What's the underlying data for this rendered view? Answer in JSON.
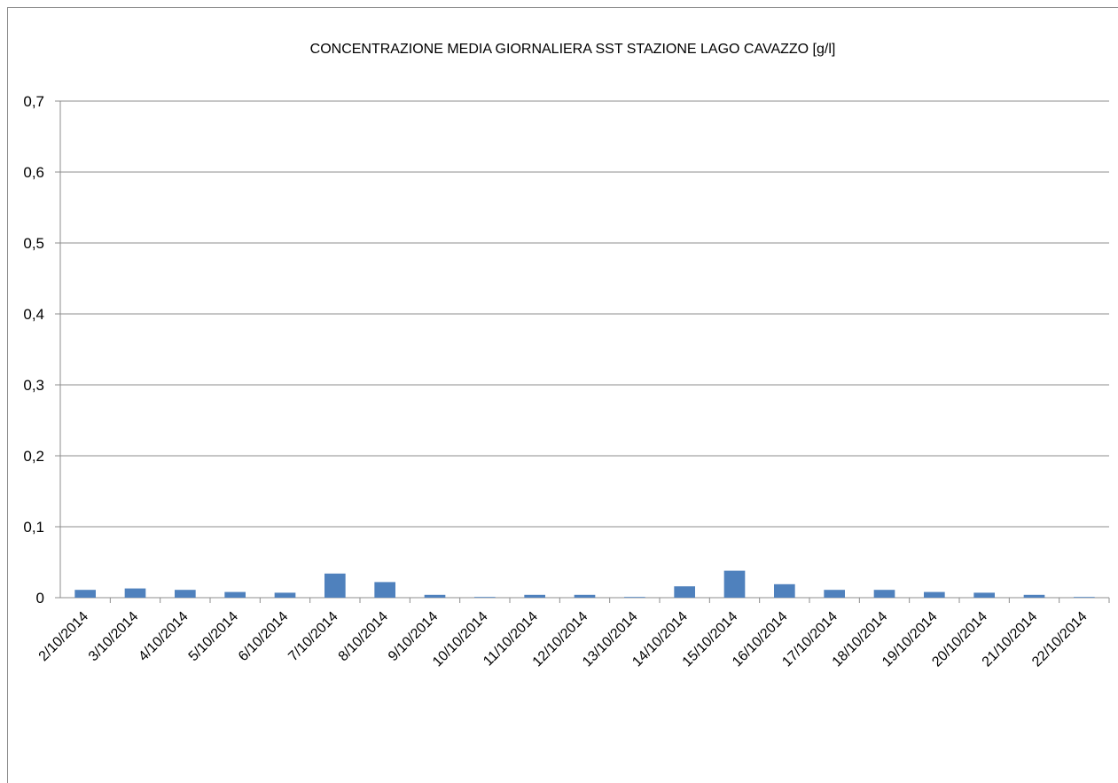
{
  "chart_data": {
    "type": "bar",
    "title": "CONCENTRAZIONE MEDIA GIORNALIERA SST STAZIONE LAGO CAVAZZO [g/l]",
    "xlabel": "",
    "ylabel": "",
    "ylim": [
      0,
      0.7
    ],
    "yticks": [
      "0",
      "0,1",
      "0,2",
      "0,3",
      "0,4",
      "0,5",
      "0,6",
      "0,7"
    ],
    "grid": true,
    "legend": "none",
    "bar_color": "#4f81bd",
    "categories": [
      "2/10/2014",
      "3/10/2014",
      "4/10/2014",
      "5/10/2014",
      "6/10/2014",
      "7/10/2014",
      "8/10/2014",
      "9/10/2014",
      "10/10/2014",
      "11/10/2014",
      "12/10/2014",
      "13/10/2014",
      "14/10/2014",
      "15/10/2014",
      "16/10/2014",
      "17/10/2014",
      "18/10/2014",
      "19/10/2014",
      "20/10/2014",
      "21/10/2014",
      "22/10/2014"
    ],
    "values": [
      0.011,
      0.013,
      0.011,
      0.008,
      0.007,
      0.034,
      0.022,
      0.004,
      0.001,
      0.004,
      0.004,
      0.001,
      0.016,
      0.038,
      0.019,
      0.011,
      0.011,
      0.008,
      0.007,
      0.004,
      0.001
    ]
  }
}
